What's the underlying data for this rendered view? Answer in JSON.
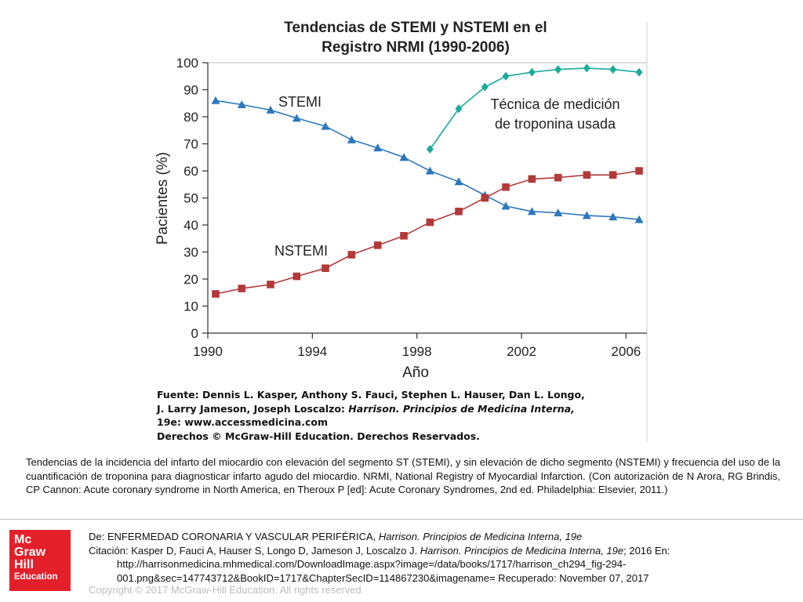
{
  "chart_data": {
    "type": "line",
    "title_lines": [
      "Tendencias de STEMI y NSTEMI en el",
      "Registro NRMI (1990-2006)"
    ],
    "xlabel": "Año",
    "ylabel": "Pacientes (%)",
    "xlim": [
      1990,
      2006.8
    ],
    "ylim": [
      0,
      100
    ],
    "x_ticks": [
      1990,
      1994,
      1998,
      2002,
      2006
    ],
    "y_ticks": [
      0,
      10,
      20,
      30,
      40,
      50,
      60,
      70,
      80,
      90,
      100
    ],
    "grid": false,
    "series": [
      {
        "name": "STEMI",
        "color": "#2d77bd",
        "marker": "triangle",
        "x": [
          1990.3,
          1991.3,
          1992.4,
          1993.4,
          1994.5,
          1995.5,
          1996.5,
          1997.5,
          1998.5,
          1999.6,
          2000.6,
          2001.4,
          2002.4,
          2003.4,
          2004.5,
          2005.5,
          2006.5
        ],
        "y": [
          86,
          84.5,
          82.5,
          79.5,
          76.5,
          71.5,
          68.5,
          65,
          60,
          56,
          51,
          47,
          45,
          44.5,
          43.5,
          43,
          42
        ]
      },
      {
        "name": "NSTEMI",
        "color": "#b23a3a",
        "marker": "square",
        "x": [
          1990.3,
          1991.3,
          1992.4,
          1993.4,
          1994.5,
          1995.5,
          1996.5,
          1997.5,
          1998.5,
          1999.6,
          2000.6,
          2001.4,
          2002.4,
          2003.4,
          2004.5,
          2005.5,
          2006.5
        ],
        "y": [
          14.5,
          16.5,
          18,
          21,
          24,
          29,
          32.5,
          36,
          41,
          45,
          50,
          54,
          57,
          57.5,
          58.5,
          58.5,
          60
        ]
      },
      {
        "name": "Técnica de medición de troponina usada",
        "color": "#1aab9b",
        "marker": "diamond",
        "x": [
          1998.5,
          1999.6,
          2000.6,
          2001.4,
          2002.4,
          2003.4,
          2004.5,
          2005.5,
          2006.5
        ],
        "y": [
          68,
          83,
          91,
          95,
          96.5,
          97.5,
          98,
          97.5,
          96.5
        ]
      }
    ],
    "annotations": {
      "stemi": "STEMI",
      "nstemi": "NSTEMI",
      "troponin_lines": [
        "Técnica de medición",
        "de troponina usada"
      ]
    }
  },
  "source": {
    "lead": "Fuente: Dennis L. Kasper, Anthony S. Fauci, Stephen L. Hauser, Dan L. Longo,",
    "line2_plain": "J. Larry Jameson, Joseph Loscalzo: ",
    "line2_italic": "Harrison. Principios de Medicina Interna,",
    "line3": "19e: www.accessmedicina.com",
    "line4": "Derechos © McGraw-Hill Education. Derechos Reservados."
  },
  "caption": "Tendencias de la incidencia del infarto del miocardio con elevación del segmento ST (STEMI), y sin elevación de dicho segmento (NSTEMI) y frecuencia del uso de la cuantificación de troponina para diagnosticar infarto agudo del miocardio. NRMI, National Registry of Myocardial Infarction. (Con autorización de N Arora, RG Brindis, CP Cannon: Acute coronary syndrome in North America, en Theroux P [ed]: Acute Coronary Syndromes, 2nd ed. Philadelphia: Elsevier, 2011.)",
  "logo": {
    "line1": "Mc",
    "line2": "Graw",
    "line3": "Hill",
    "line4": "Education"
  },
  "citation": {
    "from_prefix": "De: ENFERMEDAD CORONARIA Y VASCULAR PERIFÉRICA, ",
    "from_book": "Harrison. Principios de Medicina Interna, 19e",
    "cite_prefix": "Citación: Kasper D, Fauci A, Hauser S, Longo D, Jameson J, Loscalzo J. ",
    "cite_book": "Harrison. Principios de Medicina Interna, 19e",
    "cite_suffix": "; 2016 En:",
    "url_line1": "http://harrisonmedicina.mhmedical.com/DownloadImage.aspx?image=/data/books/1717/harrison_ch294_fig-294-",
    "url_line2": "001.png&sec=147743712&BookID=1717&ChapterSecID=114867230&imagename= Recuperado: November 07, 2017"
  },
  "copyright": "Copyright © 2017 McGraw-Hill Education. All rights reserved"
}
